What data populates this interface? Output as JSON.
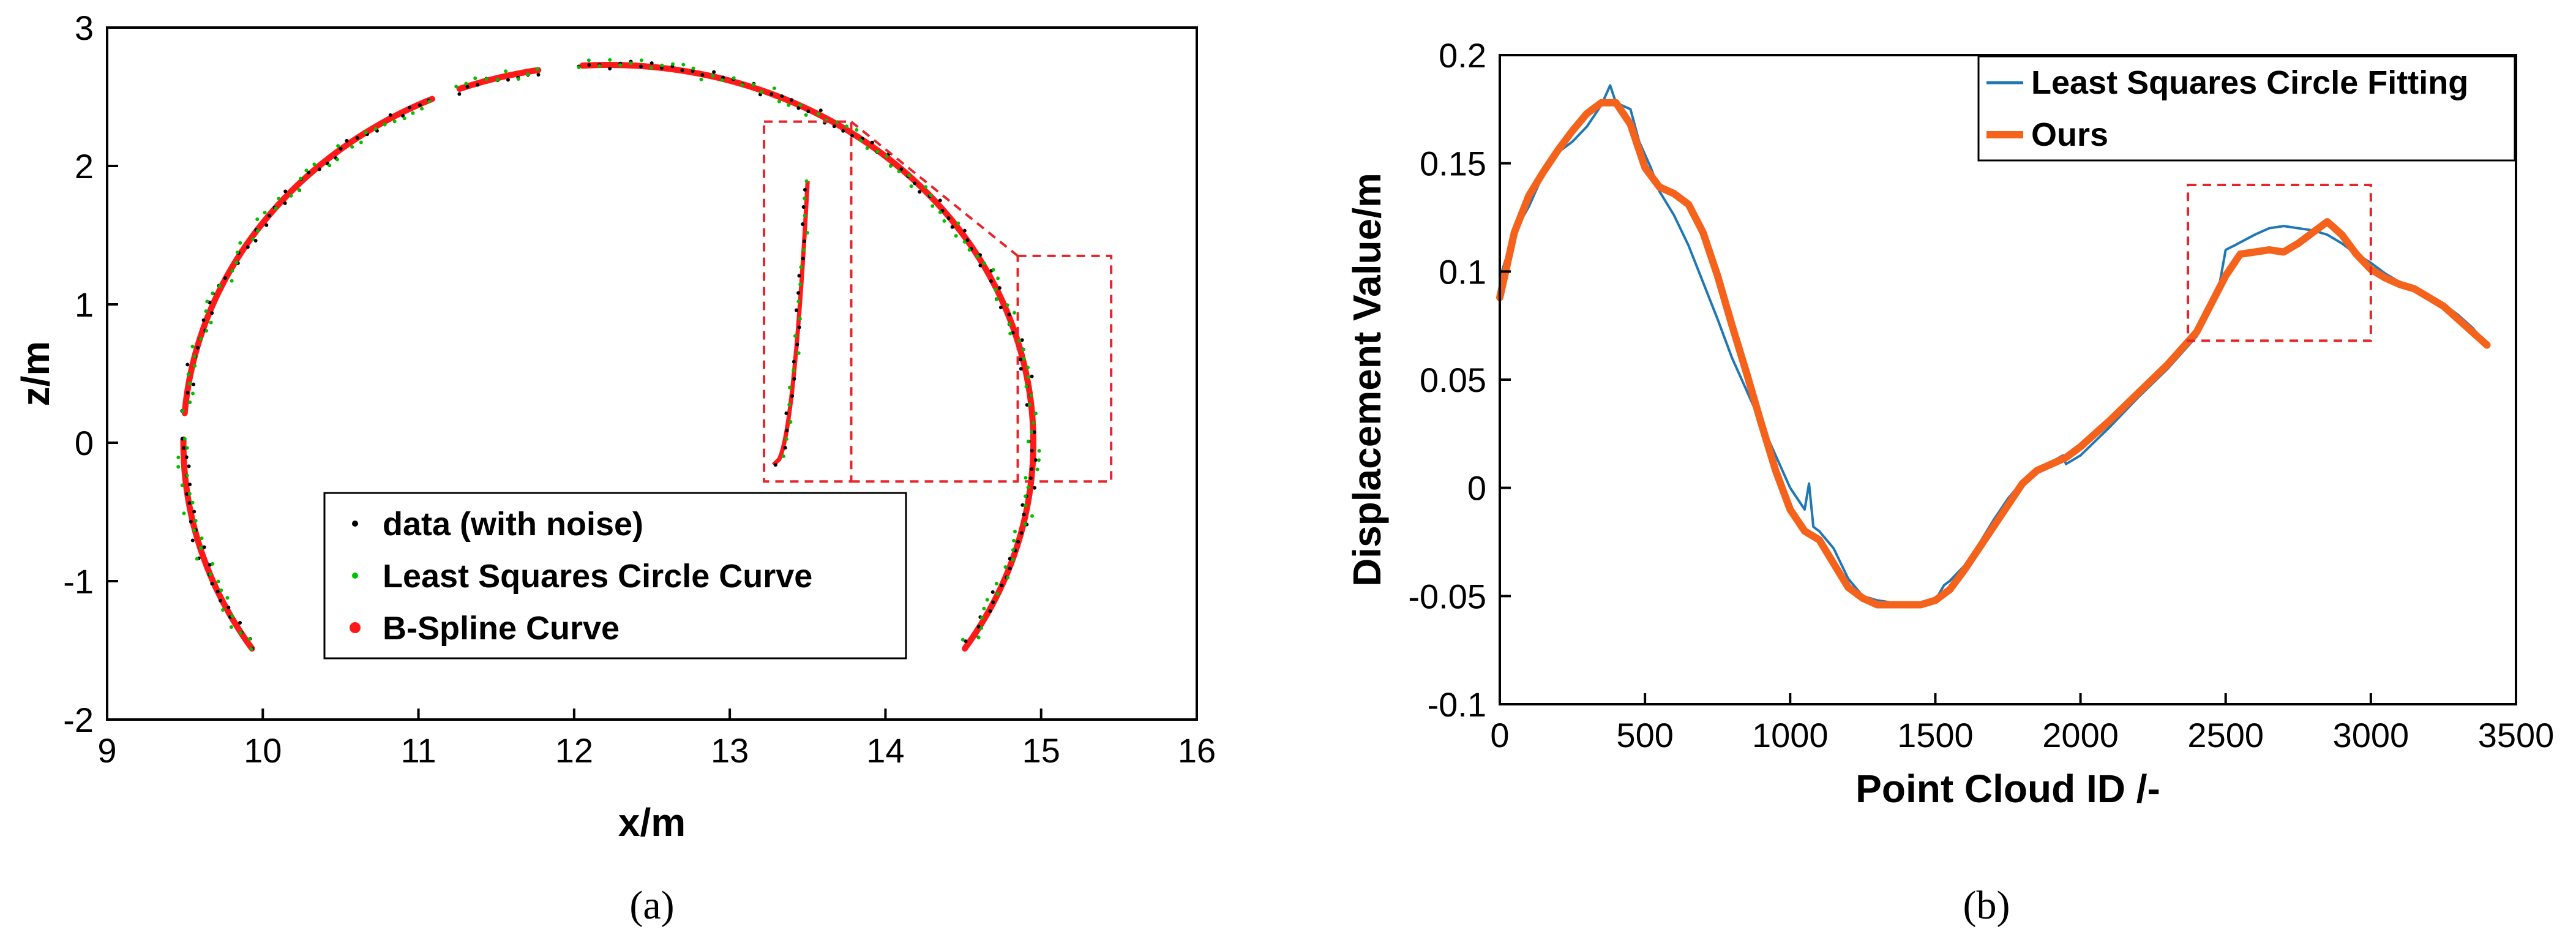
{
  "panels": {
    "a_label": "(a)",
    "b_label": "(b)"
  },
  "chart_data": [
    {
      "type": "scatter",
      "title": "",
      "xlabel": "x/m",
      "ylabel": "z/m",
      "xlim": [
        9,
        16
      ],
      "ylim": [
        -2,
        3
      ],
      "xticks": [
        "9",
        "10",
        "11",
        "12",
        "13",
        "14",
        "15",
        "16"
      ],
      "yticks": [
        "-2",
        "-1",
        "0",
        "1",
        "2",
        "3"
      ],
      "grid": false,
      "legend_position": "bottom-center",
      "arc": {
        "center_x": 12.22,
        "center_z": 0.0,
        "radius": 2.73,
        "start_deg": 213,
        "end_deg": -33
      },
      "gaps_deg": [
        [
          94,
          99
        ],
        [
          111,
          114
        ],
        [
          176,
          179
        ]
      ],
      "zoom_region": {
        "x": [
          14.85,
          15.45
        ],
        "z": [
          -0.28,
          1.35
        ]
      },
      "inset_region": {
        "x": [
          13.22,
          13.78
        ],
        "z": [
          -0.28,
          2.32
        ]
      },
      "series": [
        {
          "name": "data (with noise)",
          "color": "#000000",
          "marker": "dot"
        },
        {
          "name": "Least Squares Circle Curve",
          "color": "#00c000",
          "marker": "dot"
        },
        {
          "name": "B-Spline Curve",
          "color": "#ff1a1a",
          "marker": "dot"
        }
      ],
      "colors": {
        "arc_black": "#000000",
        "arc_green": "#00c000",
        "arc_red": "#ff1a1a",
        "zoom_box": "#e8242a"
      }
    },
    {
      "type": "line",
      "title": "",
      "xlabel": "Point Cloud ID /-",
      "ylabel": "Displacement Value/m",
      "xlim": [
        0,
        3500
      ],
      "ylim": [
        -0.1,
        0.2
      ],
      "xticks": [
        "0",
        "500",
        "1000",
        "1500",
        "2000",
        "2500",
        "3000",
        "3500"
      ],
      "yticks": [
        "-0.1",
        "-0.05",
        "0",
        "0.05",
        "0.1",
        "0.15",
        "0.2"
      ],
      "grid": false,
      "legend_position": "top-right",
      "zoom_region": {
        "x": [
          2370,
          3000
        ],
        "y": [
          0.068,
          0.14
        ]
      },
      "series": [
        {
          "name": "Least Squares Circle Fitting",
          "color": "#1f77b4",
          "x": [
            0,
            50,
            100,
            150,
            200,
            250,
            300,
            350,
            380,
            400,
            450,
            480,
            520,
            550,
            600,
            650,
            700,
            750,
            800,
            850,
            900,
            950,
            1000,
            1050,
            1065,
            1080,
            1100,
            1150,
            1200,
            1250,
            1300,
            1350,
            1400,
            1450,
            1500,
            1530,
            1550,
            1600,
            1650,
            1700,
            1750,
            1800,
            1850,
            1900,
            1940,
            1950,
            2000,
            2100,
            2200,
            2300,
            2400,
            2450,
            2480,
            2500,
            2530,
            2600,
            2650,
            2700,
            2750,
            2800,
            2850,
            2900,
            2950,
            3000,
            3050,
            3100,
            3150,
            3200,
            3250,
            3300,
            3350,
            3400
          ],
          "y": [
            0.097,
            0.118,
            0.13,
            0.145,
            0.155,
            0.16,
            0.167,
            0.177,
            0.186,
            0.178,
            0.175,
            0.16,
            0.148,
            0.137,
            0.126,
            0.112,
            0.095,
            0.078,
            0.06,
            0.045,
            0.03,
            0.015,
            0.0,
            -0.01,
            0.002,
            -0.018,
            -0.02,
            -0.028,
            -0.042,
            -0.05,
            -0.052,
            -0.053,
            -0.055,
            -0.055,
            -0.052,
            -0.045,
            -0.043,
            -0.036,
            -0.026,
            -0.015,
            -0.005,
            0.003,
            0.008,
            0.012,
            0.015,
            0.011,
            0.015,
            0.028,
            0.042,
            0.055,
            0.07,
            0.083,
            0.095,
            0.11,
            0.112,
            0.117,
            0.12,
            0.121,
            0.12,
            0.119,
            0.117,
            0.113,
            0.108,
            0.104,
            0.099,
            0.095,
            0.092,
            0.089,
            0.085,
            0.08,
            0.074,
            0.066
          ]
        },
        {
          "name": "Ours",
          "color": "#f4621b",
          "x": [
            0,
            50,
            100,
            150,
            200,
            250,
            300,
            350,
            400,
            450,
            500,
            550,
            600,
            650,
            700,
            750,
            800,
            850,
            900,
            950,
            1000,
            1050,
            1100,
            1150,
            1200,
            1250,
            1300,
            1350,
            1400,
            1450,
            1500,
            1550,
            1600,
            1650,
            1700,
            1750,
            1800,
            1850,
            1900,
            1950,
            2000,
            2100,
            2200,
            2300,
            2400,
            2450,
            2500,
            2550,
            2600,
            2650,
            2700,
            2750,
            2800,
            2850,
            2900,
            2950,
            3000,
            3050,
            3100,
            3150,
            3200,
            3250,
            3300,
            3350,
            3400
          ],
          "y": [
            0.088,
            0.118,
            0.135,
            0.146,
            0.156,
            0.165,
            0.173,
            0.178,
            0.178,
            0.168,
            0.148,
            0.139,
            0.136,
            0.131,
            0.118,
            0.098,
            0.075,
            0.053,
            0.03,
            0.008,
            -0.01,
            -0.02,
            -0.024,
            -0.035,
            -0.046,
            -0.051,
            -0.054,
            -0.054,
            -0.054,
            -0.054,
            -0.052,
            -0.047,
            -0.038,
            -0.028,
            -0.018,
            -0.008,
            0.002,
            0.008,
            0.011,
            0.014,
            0.019,
            0.031,
            0.044,
            0.057,
            0.072,
            0.085,
            0.098,
            0.108,
            0.109,
            0.11,
            0.109,
            0.113,
            0.118,
            0.123,
            0.117,
            0.108,
            0.101,
            0.097,
            0.094,
            0.092,
            0.088,
            0.084,
            0.078,
            0.072,
            0.066
          ]
        }
      ]
    }
  ]
}
